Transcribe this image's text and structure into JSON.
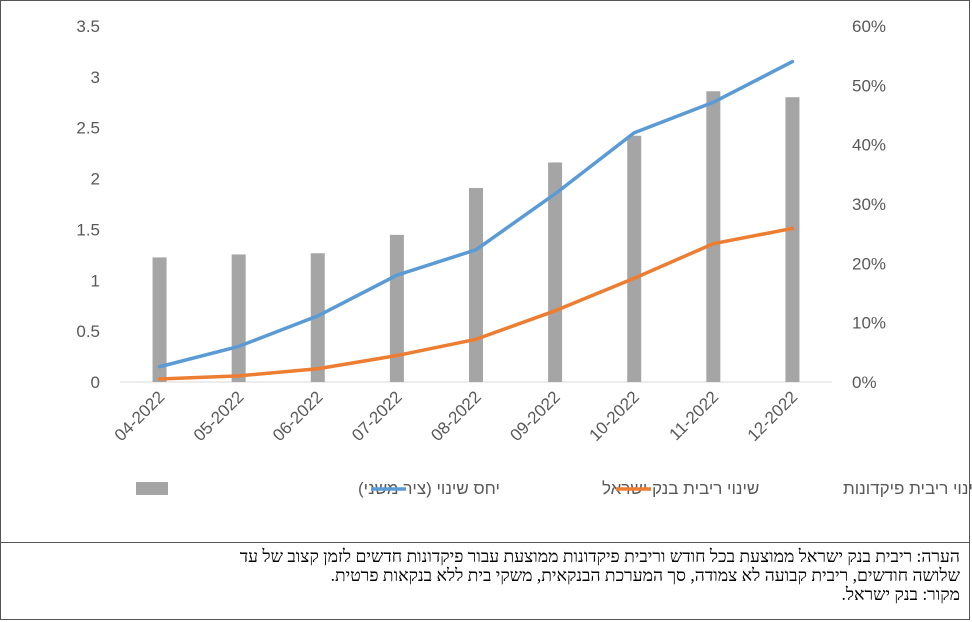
{
  "chart_data": {
    "type": "bar",
    "categories": [
      "04-2022",
      "05-2022",
      "06-2022",
      "07-2022",
      "08-2022",
      "09-2022",
      "10-2022",
      "11-2022",
      "12-2022"
    ],
    "series": [
      {
        "name": "יחס שינוי (ציר משני)",
        "type": "bar",
        "axis": "secondary",
        "color": "#a5a5a5",
        "values": [
          0.21,
          0.215,
          0.217,
          0.248,
          0.327,
          0.37,
          0.415,
          0.49,
          0.48
        ]
      },
      {
        "name": "שינוי ריבית בנק ישראל",
        "type": "line",
        "axis": "primary",
        "color": "#5b9bd5",
        "values": [
          0.15,
          0.35,
          0.65,
          1.05,
          1.3,
          1.85,
          2.45,
          2.75,
          3.15
        ]
      },
      {
        "name": "שינוי ריבית פיקדונות",
        "type": "line",
        "axis": "primary",
        "color": "#ed7d31",
        "values": [
          0.03,
          0.06,
          0.13,
          0.26,
          0.42,
          0.7,
          1.02,
          1.36,
          1.51
        ]
      }
    ],
    "primary_axis": {
      "min": 0,
      "max": 3.5,
      "ticks": [
        "0",
        "0.5",
        "1",
        "1.5",
        "2",
        "2.5",
        "3",
        "3.5"
      ]
    },
    "secondary_axis": {
      "min": 0,
      "max": 0.6,
      "ticks": [
        "0%",
        "10%",
        "20%",
        "30%",
        "40%",
        "50%",
        "60%"
      ]
    },
    "grid": false,
    "legend_position": "bottom"
  },
  "note": {
    "line1": "הערה: ריבית בנק ישראל ממוצעת בכל חודש וריבית פיקדונות ממוצעת עבור פיקדונות חדשים לזמן קצוב של עד",
    "line2": "שלושה חודשים, ריבית קבועה לא צמודה, סך המערכת הבנקאית, משקי בית ללא בנקאות פרטית.",
    "line3": "מקור: בנק ישראל."
  }
}
